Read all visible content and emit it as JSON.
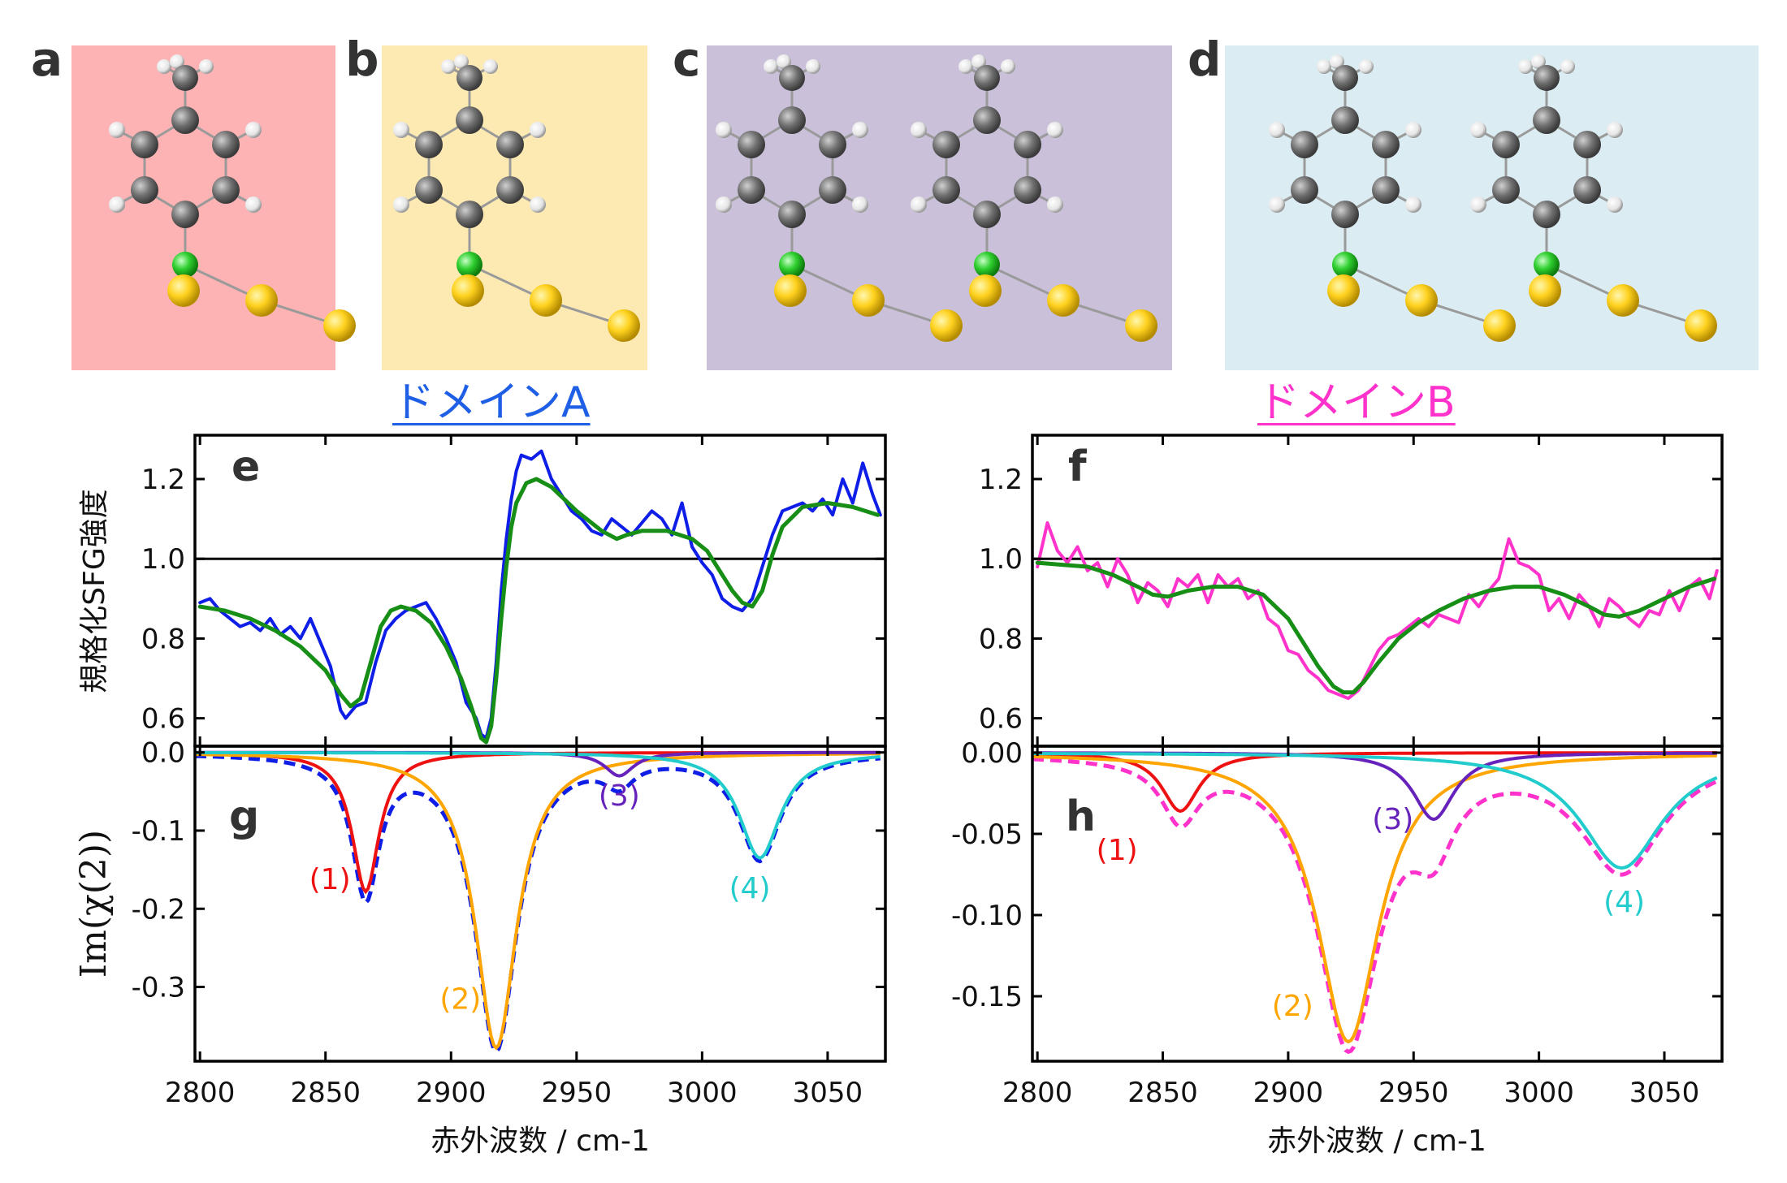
{
  "panel_labels": {
    "a": "a",
    "b": "b",
    "c": "c",
    "d": "d"
  },
  "structure_panels": [
    {
      "label": "a",
      "bg": "#fdb3b3",
      "molecules": 1
    },
    {
      "label": "b",
      "bg": "#fde9b2",
      "molecules": 1
    },
    {
      "label": "c",
      "bg": "#cac0da",
      "molecules": 2
    },
    {
      "label": "d",
      "bg": "#dbedf2",
      "molecules": 2
    }
  ],
  "atom_colors": {
    "carbon": "#6e6e6e",
    "hydrogen": "#eeeeee",
    "sulfur": "#f2cc0c",
    "gold": "#ffd21f",
    "bond": "#aaaaaa"
  },
  "domain_titles": {
    "A": {
      "text": "ドメインA",
      "color": "#1f5fe6"
    },
    "B": {
      "text": "ドメインB",
      "color": "#ff33cc"
    }
  },
  "colors": {
    "red": "#ee1111",
    "orange": "#ffa500",
    "purple": "#6622bb",
    "cyan": "#22cccc",
    "blue": "#0f1ee6",
    "magenta": "#ff33cc",
    "green": "#178f17"
  },
  "axis_labels": {
    "y_top": "規格化SFG強度",
    "y_bottom": "Im(χ(2))",
    "x_left": "赤外波数 / cm-1",
    "x_right": "赤外波数 / cm-1"
  },
  "chart_data": [
    {
      "panel": "e",
      "type": "line",
      "xlim": [
        2798,
        3073
      ],
      "ylim": [
        0.53,
        1.31
      ],
      "yticks": [
        0.6,
        0.8,
        1.0,
        1.2
      ],
      "ytick_labels": [
        "0.6",
        "0.8",
        "1.0",
        "1.2"
      ],
      "hline": 1.0,
      "series": [
        {
          "role": "data",
          "color": "blue",
          "x": [
            2800,
            2804,
            2808,
            2812,
            2816,
            2820,
            2824,
            2828,
            2832,
            2836,
            2840,
            2844,
            2848,
            2852,
            2856,
            2858,
            2862,
            2866,
            2870,
            2874,
            2878,
            2882,
            2886,
            2890,
            2894,
            2898,
            2902,
            2906,
            2910,
            2912,
            2914,
            2916,
            2918,
            2920,
            2922,
            2924,
            2926,
            2928,
            2932,
            2936,
            2940,
            2944,
            2948,
            2952,
            2956,
            2960,
            2964,
            2968,
            2972,
            2976,
            2980,
            2984,
            2988,
            2992,
            2996,
            3000,
            3004,
            3008,
            3012,
            3016,
            3020,
            3024,
            3028,
            3032,
            3036,
            3040,
            3044,
            3048,
            3052,
            3056,
            3060,
            3064,
            3068,
            3071
          ],
          "y": [
            0.89,
            0.9,
            0.87,
            0.85,
            0.83,
            0.84,
            0.82,
            0.85,
            0.81,
            0.83,
            0.8,
            0.85,
            0.79,
            0.73,
            0.62,
            0.6,
            0.63,
            0.64,
            0.74,
            0.82,
            0.85,
            0.87,
            0.88,
            0.89,
            0.85,
            0.8,
            0.74,
            0.64,
            0.6,
            0.56,
            0.55,
            0.6,
            0.74,
            0.92,
            1.05,
            1.15,
            1.22,
            1.26,
            1.25,
            1.27,
            1.2,
            1.16,
            1.12,
            1.1,
            1.07,
            1.06,
            1.1,
            1.08,
            1.06,
            1.09,
            1.12,
            1.1,
            1.06,
            1.14,
            1.03,
            0.99,
            0.96,
            0.9,
            0.88,
            0.87,
            0.9,
            0.98,
            1.06,
            1.12,
            1.13,
            1.14,
            1.12,
            1.15,
            1.11,
            1.2,
            1.14,
            1.24,
            1.16,
            1.11
          ]
        },
        {
          "role": "fit",
          "color": "green",
          "x": [
            2800,
            2810,
            2820,
            2830,
            2840,
            2850,
            2856,
            2860,
            2864,
            2868,
            2872,
            2876,
            2880,
            2886,
            2892,
            2898,
            2904,
            2908,
            2912,
            2914,
            2916,
            2918,
            2920,
            2922,
            2924,
            2926,
            2930,
            2934,
            2940,
            2950,
            2960,
            2966,
            2970,
            2976,
            2986,
            2996,
            3002,
            3008,
            3012,
            3016,
            3020,
            3024,
            3028,
            3032,
            3040,
            3050,
            3060,
            3070
          ],
          "y": [
            0.88,
            0.87,
            0.85,
            0.82,
            0.78,
            0.72,
            0.66,
            0.63,
            0.65,
            0.74,
            0.83,
            0.87,
            0.88,
            0.87,
            0.84,
            0.78,
            0.7,
            0.63,
            0.55,
            0.54,
            0.58,
            0.7,
            0.85,
            0.98,
            1.08,
            1.14,
            1.19,
            1.2,
            1.18,
            1.12,
            1.07,
            1.05,
            1.06,
            1.07,
            1.07,
            1.05,
            1.02,
            0.96,
            0.92,
            0.89,
            0.88,
            0.92,
            1.01,
            1.08,
            1.13,
            1.14,
            1.13,
            1.11
          ]
        }
      ]
    },
    {
      "panel": "f",
      "type": "line",
      "xlim": [
        2798,
        3073
      ],
      "ylim": [
        0.53,
        1.31
      ],
      "yticks": [
        0.6,
        0.8,
        1.0,
        1.2
      ],
      "ytick_labels": [
        "0.6",
        "0.8",
        "1.0",
        "1.2"
      ],
      "hline": 1.0,
      "series": [
        {
          "role": "data",
          "color": "magenta",
          "x": [
            2800,
            2804,
            2808,
            2812,
            2816,
            2820,
            2824,
            2828,
            2832,
            2836,
            2840,
            2844,
            2848,
            2852,
            2856,
            2860,
            2864,
            2868,
            2872,
            2876,
            2880,
            2884,
            2888,
            2892,
            2896,
            2900,
            2904,
            2908,
            2912,
            2916,
            2920,
            2924,
            2928,
            2932,
            2936,
            2940,
            2944,
            2948,
            2952,
            2956,
            2960,
            2964,
            2968,
            2972,
            2976,
            2980,
            2984,
            2988,
            2992,
            2996,
            3000,
            3004,
            3008,
            3012,
            3016,
            3020,
            3024,
            3028,
            3032,
            3036,
            3040,
            3044,
            3048,
            3052,
            3056,
            3060,
            3064,
            3068,
            3071
          ],
          "y": [
            0.98,
            1.09,
            1.02,
            0.99,
            1.03,
            0.97,
            0.99,
            0.93,
            1.0,
            0.96,
            0.89,
            0.94,
            0.92,
            0.88,
            0.95,
            0.93,
            0.96,
            0.89,
            0.96,
            0.93,
            0.95,
            0.9,
            0.92,
            0.85,
            0.83,
            0.77,
            0.76,
            0.72,
            0.7,
            0.67,
            0.66,
            0.65,
            0.67,
            0.72,
            0.77,
            0.8,
            0.81,
            0.83,
            0.85,
            0.83,
            0.86,
            0.85,
            0.84,
            0.91,
            0.88,
            0.92,
            0.95,
            1.05,
            0.99,
            0.98,
            0.96,
            0.87,
            0.9,
            0.85,
            0.91,
            0.88,
            0.83,
            0.9,
            0.88,
            0.85,
            0.83,
            0.87,
            0.86,
            0.92,
            0.87,
            0.93,
            0.95,
            0.9,
            0.97
          ]
        },
        {
          "role": "fit",
          "color": "green",
          "x": [
            2800,
            2810,
            2820,
            2830,
            2840,
            2846,
            2852,
            2860,
            2870,
            2880,
            2890,
            2900,
            2906,
            2912,
            2918,
            2922,
            2926,
            2930,
            2936,
            2944,
            2952,
            2960,
            2970,
            2980,
            2990,
            3000,
            3010,
            3020,
            3026,
            3032,
            3040,
            3050,
            3060,
            3070
          ],
          "y": [
            0.99,
            0.985,
            0.98,
            0.96,
            0.93,
            0.91,
            0.905,
            0.92,
            0.93,
            0.93,
            0.91,
            0.85,
            0.79,
            0.73,
            0.68,
            0.665,
            0.665,
            0.69,
            0.74,
            0.8,
            0.84,
            0.87,
            0.9,
            0.92,
            0.93,
            0.93,
            0.91,
            0.88,
            0.86,
            0.855,
            0.87,
            0.9,
            0.93,
            0.95
          ]
        }
      ]
    },
    {
      "panel": "g",
      "type": "line",
      "xlim": [
        2798,
        3073
      ],
      "ylim": [
        -0.395,
        0.008
      ],
      "yticks": [
        0.0,
        -0.1,
        -0.2,
        -0.3
      ],
      "ytick_labels": [
        "0.0",
        "-0.1",
        "-0.2",
        "-0.3"
      ],
      "xticks": [
        2800,
        2850,
        2900,
        2950,
        3000,
        3050
      ],
      "xtick_labels": [
        "2800",
        "2850",
        "2900",
        "2950",
        "3000",
        "3050"
      ],
      "peaks": [
        {
          "label": "(1)",
          "center": 2866,
          "amplitude": 0.178,
          "width": 6.5,
          "color": "red"
        },
        {
          "label": "(2)",
          "center": 2918,
          "amplitude": 0.378,
          "width": 10,
          "color": "orange"
        },
        {
          "label": "(3)",
          "center": 2967,
          "amplitude": 0.03,
          "width": 7,
          "color": "purple"
        },
        {
          "label": "(4)",
          "center": 3023,
          "amplitude": 0.135,
          "width": 10,
          "color": "cyan"
        }
      ],
      "sum_color": "blue"
    },
    {
      "panel": "h",
      "type": "line",
      "xlim": [
        2798,
        3073
      ],
      "ylim": [
        -0.19,
        0.004
      ],
      "yticks": [
        0.0,
        -0.05,
        -0.1,
        -0.15
      ],
      "ytick_labels": [
        "0.00",
        "-0.05",
        "-0.10",
        "-0.15"
      ],
      "xticks": [
        2800,
        2850,
        2900,
        2950,
        3000,
        3050
      ],
      "xtick_labels": [
        "2800",
        "2850",
        "2900",
        "2950",
        "3000",
        "3050"
      ],
      "peaks": [
        {
          "label": "(1)",
          "center": 2857,
          "amplitude": 0.036,
          "width": 9,
          "color": "red"
        },
        {
          "label": "(2)",
          "center": 2924,
          "amplitude": 0.178,
          "width": 15,
          "color": "orange"
        },
        {
          "label": "(3)",
          "center": 2958,
          "amplitude": 0.041,
          "width": 10,
          "color": "purple"
        },
        {
          "label": "(4)",
          "center": 3033,
          "amplitude": 0.071,
          "width": 20,
          "color": "cyan"
        }
      ],
      "sum_color": "magenta"
    }
  ]
}
